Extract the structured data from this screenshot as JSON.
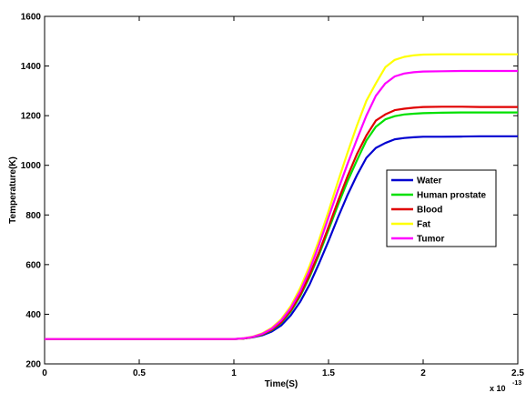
{
  "chart_data": {
    "type": "line",
    "title": "",
    "xlabel": "Time(S)",
    "ylabel": "Temperature(K)",
    "x_multiplier": {
      "base": "x 10",
      "exponent": "-13"
    },
    "xlim": [
      0,
      2.5
    ],
    "ylim": [
      200,
      1600
    ],
    "xticks": [
      0,
      0.5,
      1,
      1.5,
      2,
      2.5
    ],
    "xtick_labels": [
      "0",
      "0.5",
      "1",
      "1.5",
      "2",
      "2.5"
    ],
    "yticks": [
      200,
      400,
      600,
      800,
      1000,
      1200,
      1400,
      1600
    ],
    "ytick_labels": [
      "200",
      "400",
      "600",
      "800",
      "1000",
      "1200",
      "1400",
      "1600"
    ],
    "grid": false,
    "legend_position": "right",
    "x": [
      0,
      0.2,
      0.4,
      0.6,
      0.8,
      1.0,
      1.05,
      1.1,
      1.15,
      1.2,
      1.25,
      1.3,
      1.35,
      1.4,
      1.45,
      1.5,
      1.55,
      1.6,
      1.65,
      1.7,
      1.75,
      1.8,
      1.85,
      1.9,
      1.95,
      2.0,
      2.1,
      2.2,
      2.3,
      2.4,
      2.5
    ],
    "series": [
      {
        "name": "Water",
        "color": "#0000d0",
        "values": [
          300,
          300,
          300,
          300,
          300,
          300,
          302,
          307,
          315,
          330,
          355,
          395,
          450,
          520,
          605,
          695,
          790,
          880,
          960,
          1030,
          1070,
          1090,
          1105,
          1110,
          1113,
          1115,
          1115,
          1116,
          1117,
          1117,
          1117
        ]
      },
      {
        "name": "Human prostate",
        "color": "#00e000",
        "values": [
          300,
          300,
          300,
          300,
          300,
          300,
          302,
          308,
          318,
          336,
          365,
          410,
          472,
          550,
          640,
          740,
          840,
          935,
          1020,
          1100,
          1155,
          1185,
          1198,
          1205,
          1208,
          1210,
          1212,
          1213,
          1213,
          1213,
          1213
        ]
      },
      {
        "name": "Blood",
        "color": "#e00000",
        "values": [
          300,
          300,
          300,
          300,
          300,
          300,
          302,
          308,
          319,
          338,
          368,
          415,
          478,
          558,
          650,
          752,
          856,
          955,
          1045,
          1120,
          1180,
          1205,
          1222,
          1228,
          1232,
          1235,
          1236,
          1236,
          1235,
          1235,
          1235
        ]
      },
      {
        "name": "Fat",
        "color": "#ffff00",
        "values": [
          300,
          300,
          300,
          300,
          300,
          300,
          303,
          310,
          323,
          345,
          380,
          432,
          505,
          595,
          700,
          815,
          935,
          1050,
          1160,
          1260,
          1330,
          1395,
          1425,
          1437,
          1443,
          1446,
          1447,
          1447,
          1447,
          1447,
          1447
        ]
      },
      {
        "name": "Tumor",
        "color": "#ff00ff",
        "values": [
          300,
          300,
          300,
          300,
          300,
          300,
          303,
          309,
          321,
          342,
          375,
          424,
          492,
          578,
          680,
          790,
          900,
          1005,
          1105,
          1200,
          1280,
          1330,
          1358,
          1370,
          1375,
          1378,
          1379,
          1380,
          1380,
          1380,
          1380
        ]
      }
    ]
  }
}
